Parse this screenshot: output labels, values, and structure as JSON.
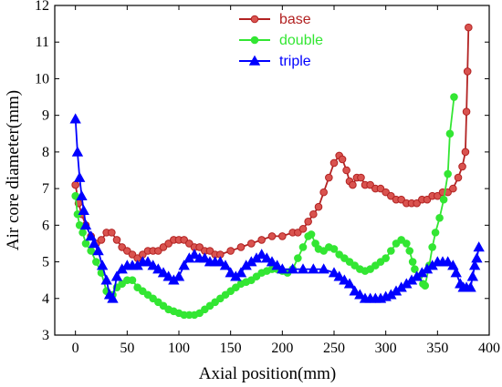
{
  "chart_data": {
    "type": "line",
    "xlabel": "Axial position(mm)",
    "ylabel": "Air core diameter(mm)",
    "xlim": [
      -20,
      400
    ],
    "ylim": [
      3,
      12
    ],
    "xticks": [
      "0",
      "50",
      "100",
      "150",
      "200",
      "250",
      "300",
      "350",
      "400"
    ],
    "yticks": [
      "3",
      "4",
      "5",
      "6",
      "7",
      "8",
      "9",
      "10",
      "11",
      "12"
    ],
    "grid": false,
    "legend_position": "top-center",
    "series": [
      {
        "name": "base",
        "color": "#b22222",
        "marker": "circle",
        "points": [
          [
            0,
            7.1
          ],
          [
            3,
            6.6
          ],
          [
            6,
            6.3
          ],
          [
            10,
            6.0
          ],
          [
            15,
            5.7
          ],
          [
            20,
            5.5
          ],
          [
            25,
            5.6
          ],
          [
            30,
            5.8
          ],
          [
            35,
            5.8
          ],
          [
            40,
            5.6
          ],
          [
            45,
            5.4
          ],
          [
            50,
            5.3
          ],
          [
            55,
            5.2
          ],
          [
            60,
            5.1
          ],
          [
            65,
            5.2
          ],
          [
            70,
            5.3
          ],
          [
            75,
            5.3
          ],
          [
            80,
            5.3
          ],
          [
            85,
            5.4
          ],
          [
            90,
            5.5
          ],
          [
            95,
            5.6
          ],
          [
            100,
            5.6
          ],
          [
            105,
            5.6
          ],
          [
            110,
            5.5
          ],
          [
            115,
            5.4
          ],
          [
            120,
            5.4
          ],
          [
            125,
            5.3
          ],
          [
            130,
            5.3
          ],
          [
            135,
            5.2
          ],
          [
            140,
            5.2
          ],
          [
            150,
            5.3
          ],
          [
            160,
            5.4
          ],
          [
            170,
            5.5
          ],
          [
            180,
            5.6
          ],
          [
            190,
            5.7
          ],
          [
            200,
            5.7
          ],
          [
            210,
            5.8
          ],
          [
            215,
            5.8
          ],
          [
            220,
            5.9
          ],
          [
            225,
            6.1
          ],
          [
            230,
            6.3
          ],
          [
            235,
            6.5
          ],
          [
            240,
            6.9
          ],
          [
            245,
            7.3
          ],
          [
            250,
            7.7
          ],
          [
            255,
            7.9
          ],
          [
            258,
            7.8
          ],
          [
            262,
            7.5
          ],
          [
            265,
            7.2
          ],
          [
            268,
            7.1
          ],
          [
            272,
            7.3
          ],
          [
            276,
            7.3
          ],
          [
            280,
            7.1
          ],
          [
            285,
            7.1
          ],
          [
            290,
            7.0
          ],
          [
            295,
            7.0
          ],
          [
            300,
            6.9
          ],
          [
            305,
            6.8
          ],
          [
            310,
            6.7
          ],
          [
            315,
            6.7
          ],
          [
            320,
            6.6
          ],
          [
            325,
            6.6
          ],
          [
            330,
            6.6
          ],
          [
            335,
            6.7
          ],
          [
            340,
            6.7
          ],
          [
            345,
            6.8
          ],
          [
            350,
            6.8
          ],
          [
            355,
            6.9
          ],
          [
            360,
            6.9
          ],
          [
            365,
            7.0
          ],
          [
            370,
            7.3
          ],
          [
            374,
            7.6
          ],
          [
            377,
            8.0
          ],
          [
            378,
            9.1
          ],
          [
            379,
            10.2
          ],
          [
            380,
            11.4
          ]
        ]
      },
      {
        "name": "double",
        "color": "#33e633",
        "marker": "circle",
        "points": [
          [
            0,
            6.8
          ],
          [
            2,
            6.3
          ],
          [
            4,
            6.0
          ],
          [
            7,
            5.8
          ],
          [
            10,
            5.5
          ],
          [
            15,
            5.3
          ],
          [
            20,
            5.0
          ],
          [
            25,
            4.7
          ],
          [
            30,
            4.2
          ],
          [
            33,
            4.1
          ],
          [
            36,
            4.1
          ],
          [
            40,
            4.3
          ],
          [
            45,
            4.4
          ],
          [
            50,
            4.5
          ],
          [
            55,
            4.5
          ],
          [
            60,
            4.3
          ],
          [
            65,
            4.2
          ],
          [
            70,
            4.1
          ],
          [
            75,
            4.0
          ],
          [
            80,
            3.9
          ],
          [
            85,
            3.8
          ],
          [
            90,
            3.7
          ],
          [
            95,
            3.65
          ],
          [
            100,
            3.6
          ],
          [
            105,
            3.55
          ],
          [
            110,
            3.55
          ],
          [
            115,
            3.55
          ],
          [
            120,
            3.6
          ],
          [
            125,
            3.7
          ],
          [
            130,
            3.8
          ],
          [
            135,
            3.9
          ],
          [
            140,
            4.0
          ],
          [
            145,
            4.1
          ],
          [
            150,
            4.2
          ],
          [
            155,
            4.3
          ],
          [
            160,
            4.4
          ],
          [
            165,
            4.45
          ],
          [
            170,
            4.5
          ],
          [
            175,
            4.6
          ],
          [
            180,
            4.7
          ],
          [
            185,
            4.75
          ],
          [
            190,
            4.8
          ],
          [
            195,
            4.8
          ],
          [
            200,
            4.75
          ],
          [
            205,
            4.7
          ],
          [
            210,
            4.8
          ],
          [
            215,
            5.1
          ],
          [
            220,
            5.4
          ],
          [
            225,
            5.7
          ],
          [
            228,
            5.75
          ],
          [
            232,
            5.5
          ],
          [
            235,
            5.35
          ],
          [
            240,
            5.3
          ],
          [
            245,
            5.4
          ],
          [
            250,
            5.35
          ],
          [
            255,
            5.2
          ],
          [
            260,
            5.1
          ],
          [
            265,
            5.0
          ],
          [
            270,
            4.9
          ],
          [
            275,
            4.8
          ],
          [
            280,
            4.75
          ],
          [
            285,
            4.8
          ],
          [
            290,
            4.9
          ],
          [
            295,
            5.0
          ],
          [
            300,
            5.1
          ],
          [
            305,
            5.3
          ],
          [
            310,
            5.5
          ],
          [
            315,
            5.6
          ],
          [
            320,
            5.5
          ],
          [
            323,
            5.3
          ],
          [
            326,
            5.0
          ],
          [
            328,
            4.8
          ],
          [
            332,
            4.6
          ],
          [
            336,
            4.4
          ],
          [
            338,
            4.35
          ],
          [
            342,
            4.9
          ],
          [
            345,
            5.4
          ],
          [
            348,
            5.8
          ],
          [
            352,
            6.2
          ],
          [
            356,
            6.7
          ],
          [
            360,
            7.4
          ],
          [
            362,
            8.5
          ],
          [
            366,
            9.5
          ]
        ]
      },
      {
        "name": "triple",
        "color": "#0000ff",
        "marker": "triangle",
        "points": [
          [
            0,
            8.9
          ],
          [
            2,
            8.0
          ],
          [
            4,
            7.3
          ],
          [
            6,
            6.8
          ],
          [
            8,
            6.4
          ],
          [
            10,
            6.0
          ],
          [
            15,
            5.7
          ],
          [
            18,
            5.5
          ],
          [
            22,
            5.3
          ],
          [
            26,
            4.9
          ],
          [
            30,
            4.5
          ],
          [
            33,
            4.1
          ],
          [
            36,
            4.0
          ],
          [
            40,
            4.6
          ],
          [
            45,
            4.8
          ],
          [
            50,
            4.9
          ],
          [
            55,
            4.9
          ],
          [
            60,
            4.9
          ],
          [
            65,
            5.0
          ],
          [
            70,
            5.0
          ],
          [
            75,
            4.9
          ],
          [
            80,
            4.8
          ],
          [
            85,
            4.7
          ],
          [
            90,
            4.6
          ],
          [
            95,
            4.5
          ],
          [
            100,
            4.6
          ],
          [
            105,
            4.9
          ],
          [
            110,
            5.1
          ],
          [
            115,
            5.2
          ],
          [
            120,
            5.1
          ],
          [
            125,
            5.1
          ],
          [
            130,
            5.0
          ],
          [
            135,
            5.0
          ],
          [
            140,
            5.0
          ],
          [
            145,
            4.9
          ],
          [
            150,
            4.7
          ],
          [
            155,
            4.6
          ],
          [
            160,
            4.7
          ],
          [
            165,
            4.9
          ],
          [
            170,
            5.0
          ],
          [
            175,
            5.1
          ],
          [
            180,
            5.2
          ],
          [
            185,
            5.1
          ],
          [
            190,
            5.0
          ],
          [
            195,
            4.9
          ],
          [
            200,
            4.8
          ],
          [
            210,
            4.8
          ],
          [
            220,
            4.8
          ],
          [
            230,
            4.8
          ],
          [
            240,
            4.8
          ],
          [
            250,
            4.7
          ],
          [
            255,
            4.6
          ],
          [
            260,
            4.5
          ],
          [
            265,
            4.4
          ],
          [
            270,
            4.2
          ],
          [
            275,
            4.1
          ],
          [
            280,
            4.0
          ],
          [
            285,
            4.0
          ],
          [
            290,
            4.0
          ],
          [
            295,
            4.0
          ],
          [
            300,
            4.05
          ],
          [
            305,
            4.1
          ],
          [
            310,
            4.2
          ],
          [
            315,
            4.3
          ],
          [
            320,
            4.4
          ],
          [
            325,
            4.5
          ],
          [
            330,
            4.6
          ],
          [
            335,
            4.7
          ],
          [
            340,
            4.8
          ],
          [
            345,
            4.9
          ],
          [
            350,
            5.0
          ],
          [
            355,
            5.0
          ],
          [
            360,
            5.0
          ],
          [
            365,
            4.9
          ],
          [
            368,
            4.7
          ],
          [
            372,
            4.4
          ],
          [
            375,
            4.3
          ],
          [
            378,
            4.3
          ],
          [
            382,
            4.3
          ],
          [
            384,
            4.6
          ],
          [
            386,
            4.9
          ],
          [
            388,
            5.1
          ],
          [
            390,
            5.4
          ]
        ]
      }
    ]
  }
}
